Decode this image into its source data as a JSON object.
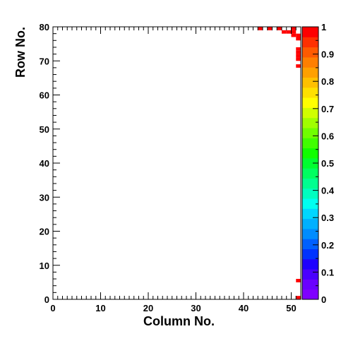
{
  "chart_data": {
    "type": "heatmap",
    "xlabel": "Column No.",
    "ylabel": "Row No.",
    "xlim": [
      0,
      52
    ],
    "ylim": [
      0,
      80
    ],
    "x_ticks": [
      0,
      10,
      20,
      30,
      40,
      50
    ],
    "y_ticks": [
      0,
      10,
      20,
      30,
      40,
      50,
      60,
      70,
      80
    ],
    "colorbar": {
      "range": [
        0,
        1
      ],
      "ticks": [
        0,
        0.1,
        0.2,
        0.3,
        0.4,
        0.5,
        0.6,
        0.7,
        0.8,
        0.9,
        1
      ],
      "tick_labels": [
        "0",
        "0.1",
        "0.2",
        "0.3",
        "0.4",
        "0.5",
        "0.6",
        "0.7",
        "0.8",
        "0.9",
        "1"
      ],
      "colors": [
        "#7f00ff",
        "#6a00ff",
        "#4a00ff",
        "#1e00ff",
        "#0033ff",
        "#0060ff",
        "#008cff",
        "#00b0ff",
        "#00d6ff",
        "#00fff0",
        "#00ffc0",
        "#00ff90",
        "#00ff60",
        "#00ff30",
        "#10ff00",
        "#40ff00",
        "#70ff00",
        "#a0ff00",
        "#d0ff00",
        "#ffff00",
        "#ffe000",
        "#ffc000",
        "#ffa000",
        "#ff7f00",
        "#ff5a00",
        "#ff3000",
        "#ff0000"
      ]
    },
    "cells": [
      {
        "x": 43,
        "y": 79,
        "value": 1
      },
      {
        "x": 45,
        "y": 79,
        "value": 1
      },
      {
        "x": 47,
        "y": 79,
        "value": 1
      },
      {
        "x": 48,
        "y": 78,
        "value": 1
      },
      {
        "x": 49,
        "y": 78,
        "value": 1
      },
      {
        "x": 50,
        "y": 79,
        "value": 1
      },
      {
        "x": 50,
        "y": 78,
        "value": 1
      },
      {
        "x": 50,
        "y": 77,
        "value": 1
      },
      {
        "x": 51,
        "y": 77,
        "value": 1
      },
      {
        "x": 51,
        "y": 76,
        "value": 1
      },
      {
        "x": 51,
        "y": 73,
        "value": 1
      },
      {
        "x": 51,
        "y": 72,
        "value": 1
      },
      {
        "x": 51,
        "y": 71,
        "value": 1
      },
      {
        "x": 51,
        "y": 70,
        "value": 1
      },
      {
        "x": 51,
        "y": 68,
        "value": 1
      },
      {
        "x": 51,
        "y": 5,
        "value": 1
      },
      {
        "x": 51,
        "y": 0,
        "value": 1
      }
    ]
  }
}
